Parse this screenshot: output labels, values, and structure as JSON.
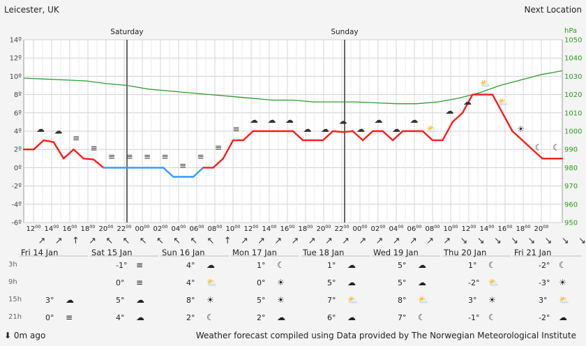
{
  "location": "Leicester, UK",
  "next_location": "Next Location",
  "day_headers": [
    {
      "label": "Saturday",
      "x_index": 6
    },
    {
      "label": "Sunday",
      "x_index": 18
    }
  ],
  "chart_data": {
    "type": "line",
    "title": "",
    "y_left": {
      "label": "",
      "min": -6,
      "max": 14,
      "step": 2,
      "unit": "º",
      "ticks": [
        "14º",
        "12º",
        "10º",
        "8º",
        "6º",
        "4º",
        "2º",
        "0º",
        "-2º",
        "-4º",
        "-6º"
      ]
    },
    "y_right": {
      "label": "hPa",
      "min": 950,
      "max": 1050,
      "step": 10,
      "ticks": [
        "1050",
        "1040",
        "1030",
        "1020",
        "1010",
        "1000",
        "990",
        "980",
        "970",
        "960",
        "950"
      ]
    },
    "x_ticks": [
      "12",
      "14",
      "16",
      "18",
      "20",
      "22",
      "00",
      "02",
      "04",
      "06",
      "08",
      "10",
      "12",
      "14",
      "16",
      "18",
      "20",
      "22",
      "00",
      "02",
      "04",
      "06",
      "08",
      "10",
      "12",
      "14",
      "16",
      "18",
      "20"
    ],
    "x_tick_suffix": "00",
    "temperature": [
      2,
      2,
      3,
      2.8,
      1,
      2,
      1,
      0.9,
      0,
      0,
      0,
      0,
      0,
      0,
      0,
      -1,
      -1,
      -1,
      0,
      0,
      1,
      3,
      3,
      4,
      4,
      4,
      4,
      4,
      3,
      3,
      3,
      4,
      3.9,
      4,
      3,
      4,
      4,
      3,
      4,
      4,
      4,
      3,
      3,
      5,
      6,
      8,
      8,
      8,
      6,
      4,
      3,
      2,
      1,
      1,
      1
    ],
    "pressure": [
      1029,
      1028.5,
      1028,
      1027.5,
      1026,
      1025,
      1023,
      1022,
      1021,
      1020,
      1019,
      1018,
      1017,
      1017,
      1016,
      1016,
      1016,
      1015.5,
      1015,
      1015,
      1016,
      1018,
      1021,
      1025,
      1028,
      1031,
      1033
    ],
    "series": [
      {
        "name": "",
        "color": "#ff1a1a"
      },
      {
        "name": "",
        "color": "#3399ff"
      },
      {
        "name": "",
        "color": "#2e9a2e"
      }
    ],
    "grid": true,
    "icons": [
      "cloud",
      "cloud",
      "fog",
      "fog",
      "fog",
      "fog",
      "fog",
      "fog",
      "fog",
      "fog",
      "fog",
      "fog",
      "cloud",
      "cloud",
      "cloud",
      "cloud",
      "cloud",
      "cloud",
      "cloud",
      "cloud",
      "cloud",
      "cloud",
      "partly-sunny",
      "cloud",
      "cloud",
      "sun-cloud",
      "sun-cloud",
      "sun",
      "moon",
      "moon"
    ],
    "wind_arrows": [
      "↗",
      "↗",
      "↑",
      "↗",
      "↖",
      "↖",
      "↖",
      "↖",
      "↖",
      "↖",
      "↖",
      "↑",
      "↗",
      "↗",
      "↗",
      "↗",
      "↗",
      "↗",
      "↗",
      "↗",
      "↗",
      "↗",
      "↗",
      "↗",
      "↗",
      "↘",
      "↘",
      "↘",
      "↘",
      "↘",
      "↘",
      "↘",
      "↘"
    ]
  },
  "day_tabs": [
    "Fri 14 Jan",
    "Sat 15 Jan",
    "Sun 16 Jan",
    "Mon 17 Jan",
    "Tue 18 Jan",
    "Wed 19 Jan",
    "Thu 20 Jan",
    "Fri 21 Jan"
  ],
  "table": {
    "rows": [
      "3h",
      "9h",
      "15h",
      "21h"
    ],
    "cells": [
      [
        [
          "",
          ""
        ],
        [
          "-1°",
          "fog"
        ],
        [
          "4°",
          "cloud"
        ],
        [
          "1°",
          "moon"
        ],
        [
          "1°",
          "cloud"
        ],
        [
          "5°",
          "cloud"
        ],
        [
          "1°",
          "moon"
        ],
        [
          "-2°",
          "moon"
        ]
      ],
      [
        [
          "",
          ""
        ],
        [
          "0°",
          "fog"
        ],
        [
          "4°",
          "sun-cloud"
        ],
        [
          "0°",
          "sun"
        ],
        [
          "5°",
          "cloud"
        ],
        [
          "5°",
          "cloud"
        ],
        [
          "-2°",
          "sun-cloud"
        ],
        [
          "-3°",
          "sun"
        ]
      ],
      [
        [
          "3°",
          "cloud"
        ],
        [
          "5°",
          "cloud"
        ],
        [
          "8°",
          "sun"
        ],
        [
          "5°",
          "sun"
        ],
        [
          "7°",
          "sun-cloud"
        ],
        [
          "8°",
          "sun-cloud"
        ],
        [
          "3°",
          "sun"
        ],
        [
          "3°",
          "sun-cloud"
        ]
      ],
      [
        [
          "0°",
          "fog"
        ],
        [
          "4°",
          "cloud2"
        ],
        [
          "2°",
          "moon"
        ],
        [
          "2°",
          "cloud2"
        ],
        [
          "6°",
          "cloud2"
        ],
        [
          "7°",
          "moon"
        ],
        [
          "-1°",
          "moon"
        ],
        [
          "-2°",
          "cloud2"
        ]
      ]
    ]
  },
  "footer": {
    "ago": "0m ago",
    "credit": "Weather forecast compiled using Data provided by The Norwegian Meteorological Institute"
  }
}
